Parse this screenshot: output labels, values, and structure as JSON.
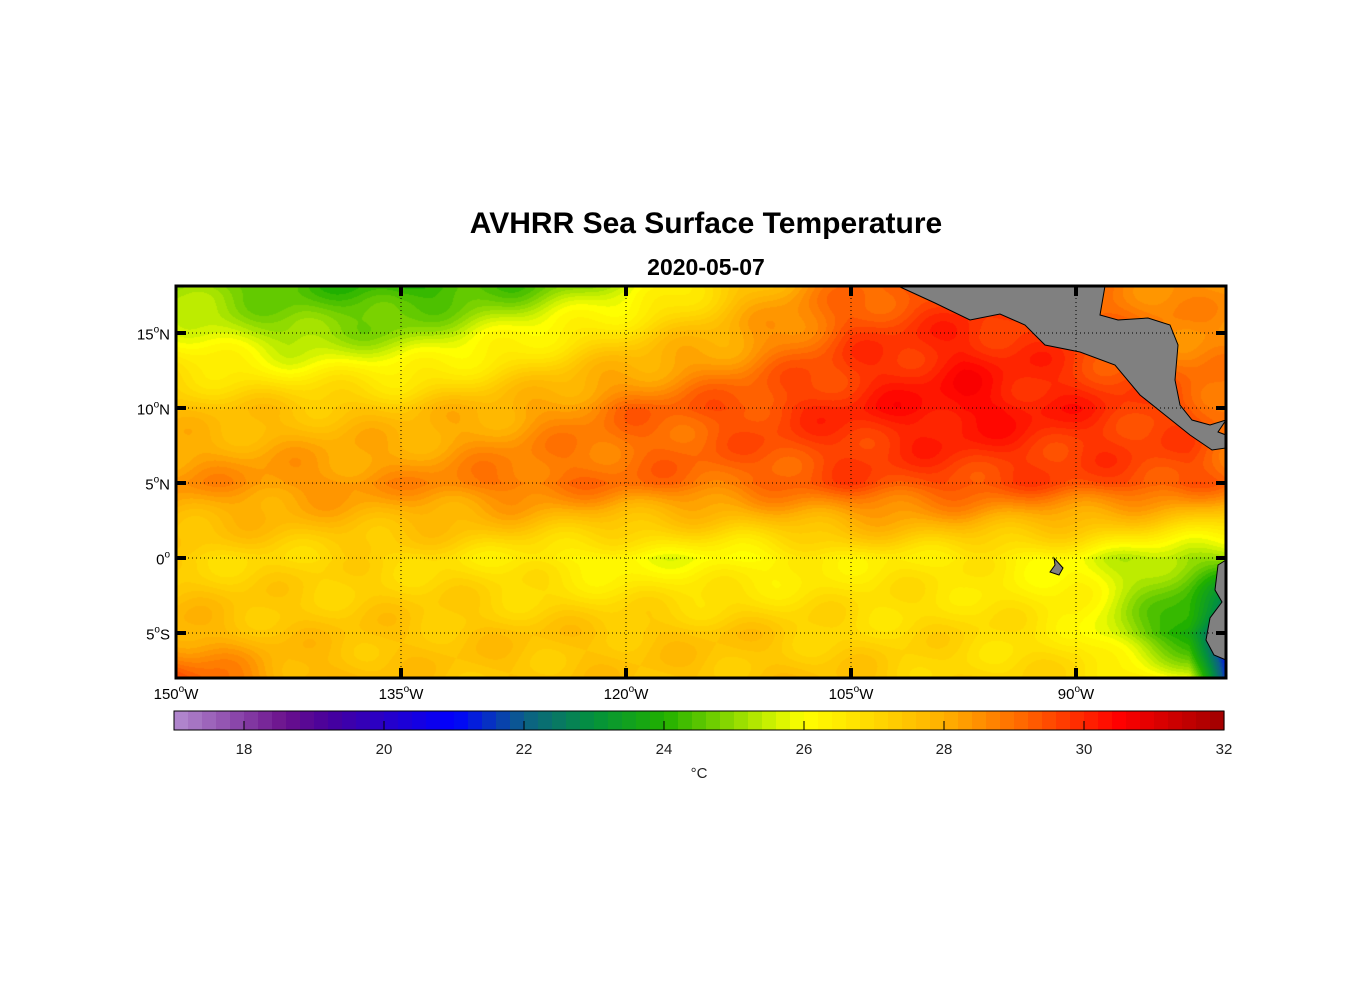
{
  "chart_data": {
    "type": "heatmap",
    "title": "AVHRR Sea Surface Temperature",
    "subtitle": "2020-05-07",
    "lon_range": [
      -150,
      -80
    ],
    "lat_range": [
      -8,
      18.1
    ],
    "x_ticks": [
      {
        "value": -150,
        "deg": "150",
        "hem": "W"
      },
      {
        "value": -135,
        "deg": "135",
        "hem": "W"
      },
      {
        "value": -120,
        "deg": "120",
        "hem": "W"
      },
      {
        "value": -105,
        "deg": "105",
        "hem": "W"
      },
      {
        "value": -90,
        "deg": "90",
        "hem": "W"
      }
    ],
    "y_ticks": [
      {
        "value": 15,
        "deg": "15",
        "hem": "N"
      },
      {
        "value": 10,
        "deg": "10",
        "hem": "N"
      },
      {
        "value": 5,
        "deg": "5",
        "hem": "N"
      },
      {
        "value": 0,
        "deg": "0",
        "hem": ""
      },
      {
        "value": -5,
        "deg": "5",
        "hem": "S"
      }
    ],
    "grid": true,
    "grid_lons": [
      -150,
      -142.5,
      -135,
      -127.5,
      -120,
      -112.5,
      -105,
      -97.5,
      -90,
      -82.5,
      -80
    ],
    "grid_lats": [
      18,
      15,
      10,
      5,
      0,
      -5,
      -8
    ],
    "sst_celsius": [
      [
        25.0,
        24.5,
        24.0,
        24.5,
        25.5,
        27.5,
        29.0,
        29.5,
        29.0,
        28.5,
        28.5
      ],
      [
        26.0,
        25.0,
        25.0,
        26.0,
        27.0,
        28.0,
        29.5,
        30.0,
        29.5,
        28.5,
        28.5
      ],
      [
        27.5,
        27.5,
        27.5,
        28.0,
        29.0,
        29.5,
        30.0,
        30.5,
        30.0,
        29.5,
        29.0
      ],
      [
        28.5,
        28.5,
        28.5,
        29.0,
        29.0,
        29.0,
        29.5,
        29.5,
        29.5,
        29.5,
        29.0
      ],
      [
        27.0,
        27.0,
        27.0,
        26.5,
        26.0,
        26.0,
        26.5,
        26.5,
        26.0,
        25.0,
        25.0
      ],
      [
        28.0,
        27.5,
        27.5,
        27.5,
        27.5,
        27.5,
        27.0,
        27.0,
        26.5,
        23.5,
        21.0
      ],
      [
        29.5,
        28.0,
        27.5,
        27.5,
        27.5,
        27.5,
        27.5,
        27.0,
        27.0,
        26.0,
        21.0
      ]
    ],
    "colorbar": {
      "range": [
        17,
        32
      ],
      "step": 0.2,
      "ticks": [
        "18",
        "20",
        "22",
        "24",
        "26",
        "28",
        "30",
        "32"
      ],
      "tick_values": [
        18,
        20,
        22,
        24,
        26,
        28,
        30,
        32
      ],
      "label": "°C",
      "stops": [
        [
          17,
          "#b48cd0"
        ],
        [
          18.6,
          "#6a108c"
        ],
        [
          19.2,
          "#48009c"
        ],
        [
          21,
          "#0000ff"
        ],
        [
          22,
          "#0c6088"
        ],
        [
          23,
          "#03923c"
        ],
        [
          24,
          "#20b000"
        ],
        [
          25.5,
          "#c8f000"
        ],
        [
          26,
          "#ffff00"
        ],
        [
          27,
          "#ffd800"
        ],
        [
          28,
          "#ffb000"
        ],
        [
          29,
          "#ff7000"
        ],
        [
          30.5,
          "#ff0000"
        ],
        [
          32,
          "#a00000"
        ]
      ]
    },
    "land_color": "#808080"
  }
}
